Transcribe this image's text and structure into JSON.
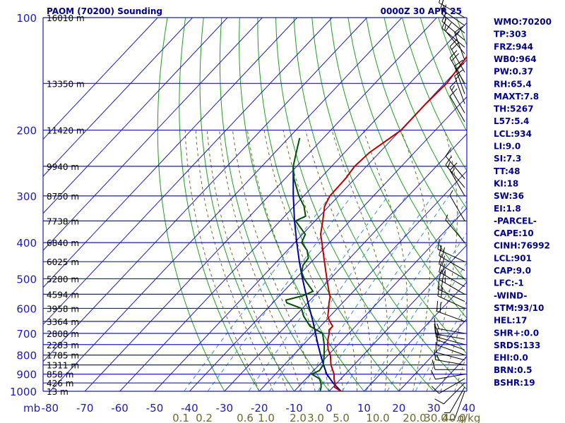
{
  "header": {
    "station": "PAOM (70200) Sounding",
    "time": "0000Z 30 APR 25"
  },
  "axis": {
    "corner_label": "mb",
    "pressure_ticks": [
      100,
      200,
      300,
      400,
      500,
      600,
      700,
      800,
      900,
      1000
    ],
    "temperature_ticks": [
      "-80",
      "-70",
      "-60",
      "-50",
      "-40",
      "-30",
      "-20",
      "-10",
      "0",
      "10",
      "20",
      "30",
      "40"
    ],
    "mixing_ratio_ticks": [
      "0.1",
      "0.2",
      "0.6",
      "1.0",
      "2.0",
      "3.0",
      "5.0",
      "10.0",
      "20.0",
      "30.0",
      "40.0"
    ],
    "mixing_ratio_unit": "g/kg",
    "height_ticks": [
      {
        "p": 100,
        "label": "16010 m"
      },
      {
        "p": 150,
        "label": "13350 m"
      },
      {
        "p": 200,
        "label": "11420 m"
      },
      {
        "p": 250,
        "label": "9940 m"
      },
      {
        "p": 300,
        "label": "8750 m"
      },
      {
        "p": 350,
        "label": "7738 m"
      },
      {
        "p": 400,
        "label": "6840 m"
      },
      {
        "p": 450,
        "label": "6025 m"
      },
      {
        "p": 500,
        "label": "5280 m"
      },
      {
        "p": 550,
        "label": "4594 m"
      },
      {
        "p": 600,
        "label": "3958 m"
      },
      {
        "p": 650,
        "label": "3364 m"
      },
      {
        "p": 700,
        "label": "2808 m"
      },
      {
        "p": 750,
        "label": "2283 m"
      },
      {
        "p": 800,
        "label": "1785 m"
      },
      {
        "p": 850,
        "label": "1311 m"
      },
      {
        "p": 900,
        "label": "858 m"
      },
      {
        "p": 950,
        "label": "426 m"
      },
      {
        "p": 1000,
        "label": "13 m"
      }
    ]
  },
  "indices": [
    "WMO:70200",
    "TP:303",
    "FRZ:944",
    "WB0:964",
    "PW:0.37",
    "RH:65.4",
    "MAXT:7.8",
    "TH:5267",
    "L57:5.4",
    "LCL:934",
    "LI:9.0",
    "SI:7.3",
    "TT:48",
    "KI:18",
    "SW:36",
    "EI:1.8",
    "-PARCEL-",
    "CAPE:10",
    "CINH:76992",
    "LCL:901",
    "CAP:9.0",
    "LFC:-1",
    "-WIND-",
    "STM:93/10",
    "HEL:17",
    "SHR+:0.0",
    "SRDS:133",
    "EHI:0.0",
    "BRN:0.5",
    "BSHR:19"
  ],
  "colors": {
    "isobar": "#1c1cb8",
    "isotherm": "#1c1cb8",
    "dry_adiabat": "#1aa01a",
    "moist_adiabat": "#6b6b2a",
    "mixing_ratio": "#3a8fd0",
    "temperature": "#c00000",
    "dewpoint": "#005000",
    "parcel": "#0000a0",
    "wind_barb": "#000000"
  },
  "chart_data": {
    "type": "skew-t",
    "y_scale": "log-pressure",
    "ylim": [
      1000,
      100
    ],
    "xlim": [
      -80,
      40
    ],
    "temperature_profile": [
      {
        "p": 1000,
        "t": 3.4
      },
      {
        "p": 975,
        "t": 0.4
      },
      {
        "p": 950,
        "t": -0.6
      },
      {
        "p": 925,
        "t": -2.0
      },
      {
        "p": 900,
        "t": -3.2
      },
      {
        "p": 850,
        "t": -6.6
      },
      {
        "p": 800,
        "t": -9.4
      },
      {
        "p": 775,
        "t": -11.4
      },
      {
        "p": 750,
        "t": -13.0
      },
      {
        "p": 725,
        "t": -14.4
      },
      {
        "p": 700,
        "t": -15.6
      },
      {
        "p": 685,
        "t": -16.6
      },
      {
        "p": 670,
        "t": -16.5
      },
      {
        "p": 650,
        "t": -18.7
      },
      {
        "p": 630,
        "t": -20.6
      },
      {
        "p": 600,
        "t": -22.5
      },
      {
        "p": 580,
        "t": -23.9
      },
      {
        "p": 560,
        "t": -25.1
      },
      {
        "p": 550,
        "t": -26.1
      },
      {
        "p": 500,
        "t": -31.0
      },
      {
        "p": 450,
        "t": -36.3
      },
      {
        "p": 400,
        "t": -42.2
      },
      {
        "p": 380,
        "t": -44.8
      },
      {
        "p": 350,
        "t": -47.8
      },
      {
        "p": 320,
        "t": -51.2
      },
      {
        "p": 300,
        "t": -52.5
      },
      {
        "p": 270,
        "t": -52.7
      },
      {
        "p": 250,
        "t": -53.4
      },
      {
        "p": 230,
        "t": -52.9
      },
      {
        "p": 200,
        "t": -49.8
      },
      {
        "p": 170,
        "t": -49.9
      },
      {
        "p": 150,
        "t": -49.4
      },
      {
        "p": 125,
        "t": -51.0
      },
      {
        "p": 100,
        "t": -52.6
      }
    ],
    "dewpoint_profile": [
      {
        "p": 1000,
        "t": -2.6
      },
      {
        "p": 975,
        "t": -3.4
      },
      {
        "p": 950,
        "t": -4.6
      },
      {
        "p": 925,
        "t": -6.2
      },
      {
        "p": 900,
        "t": -9.6
      },
      {
        "p": 880,
        "t": -8.4
      },
      {
        "p": 850,
        "t": -8.8
      },
      {
        "p": 800,
        "t": -11.2
      },
      {
        "p": 750,
        "t": -14.0
      },
      {
        "p": 700,
        "t": -17.5
      },
      {
        "p": 670,
        "t": -23.0
      },
      {
        "p": 630,
        "t": -27.5
      },
      {
        "p": 600,
        "t": -30.3
      },
      {
        "p": 580,
        "t": -36.0
      },
      {
        "p": 570,
        "t": -37.0
      },
      {
        "p": 555,
        "t": -33.3
      },
      {
        "p": 540,
        "t": -31.6
      },
      {
        "p": 500,
        "t": -37.5
      },
      {
        "p": 480,
        "t": -40.0
      },
      {
        "p": 460,
        "t": -41.5
      },
      {
        "p": 440,
        "t": -41.9
      },
      {
        "p": 420,
        "t": -44.3
      },
      {
        "p": 400,
        "t": -48.0
      },
      {
        "p": 380,
        "t": -49.2
      },
      {
        "p": 350,
        "t": -55.6
      },
      {
        "p": 340,
        "t": -54.0
      },
      {
        "p": 320,
        "t": -57.1
      },
      {
        "p": 300,
        "t": -61.4
      },
      {
        "p": 270,
        "t": -67.4
      },
      {
        "p": 250,
        "t": -71.0
      },
      {
        "p": 230,
        "t": -73.8
      },
      {
        "p": 210,
        "t": -76.8
      }
    ],
    "parcel_profile": [
      {
        "p": 1000,
        "t": 3.4
      },
      {
        "p": 950,
        "t": -1.1
      },
      {
        "p": 900,
        "t": -5.3
      },
      {
        "p": 850,
        "t": -8.7
      },
      {
        "p": 800,
        "t": -12.2
      },
      {
        "p": 750,
        "t": -15.8
      },
      {
        "p": 700,
        "t": -19.5
      },
      {
        "p": 650,
        "t": -23.5
      },
      {
        "p": 600,
        "t": -28.0
      },
      {
        "p": 550,
        "t": -32.8
      },
      {
        "p": 500,
        "t": -38.0
      },
      {
        "p": 450,
        "t": -43.5
      },
      {
        "p": 400,
        "t": -49.4
      },
      {
        "p": 350,
        "t": -55.9
      },
      {
        "p": 300,
        "t": -63.0
      },
      {
        "p": 250,
        "t": -71.0
      }
    ],
    "wind_barbs": [
      {
        "p": 1000,
        "dir": 200,
        "spd": 5
      },
      {
        "p": 975,
        "dir": 210,
        "spd": 5
      },
      {
        "p": 950,
        "dir": 225,
        "spd": 10
      },
      {
        "p": 925,
        "dir": 240,
        "spd": 10
      },
      {
        "p": 900,
        "dir": 260,
        "spd": 10
      },
      {
        "p": 875,
        "dir": 270,
        "spd": 10
      },
      {
        "p": 850,
        "dir": 280,
        "spd": 15
      },
      {
        "p": 825,
        "dir": 285,
        "spd": 10
      },
      {
        "p": 800,
        "dir": 290,
        "spd": 10
      },
      {
        "p": 775,
        "dir": 290,
        "spd": 10
      },
      {
        "p": 750,
        "dir": 285,
        "spd": 15
      },
      {
        "p": 725,
        "dir": 280,
        "spd": 15
      },
      {
        "p": 700,
        "dir": 280,
        "spd": 15
      },
      {
        "p": 650,
        "dir": 290,
        "spd": 20
      },
      {
        "p": 600,
        "dir": 295,
        "spd": 20
      },
      {
        "p": 575,
        "dir": 295,
        "spd": 20
      },
      {
        "p": 550,
        "dir": 300,
        "spd": 25
      },
      {
        "p": 525,
        "dir": 300,
        "spd": 25
      },
      {
        "p": 500,
        "dir": 300,
        "spd": 20
      },
      {
        "p": 475,
        "dir": 300,
        "spd": 20
      },
      {
        "p": 450,
        "dir": 295,
        "spd": 15
      },
      {
        "p": 400,
        "dir": 320,
        "spd": 5
      },
      {
        "p": 350,
        "dir": 330,
        "spd": 5
      },
      {
        "p": 300,
        "dir": 330,
        "spd": 15
      },
      {
        "p": 285,
        "dir": 320,
        "spd": 15
      },
      {
        "p": 270,
        "dir": 320,
        "spd": 10
      },
      {
        "p": 190,
        "dir": 330,
        "spd": 10
      },
      {
        "p": 180,
        "dir": 330,
        "spd": 15
      },
      {
        "p": 170,
        "dir": 340,
        "spd": 15
      },
      {
        "p": 160,
        "dir": 340,
        "spd": 20
      },
      {
        "p": 150,
        "dir": 330,
        "spd": 20
      },
      {
        "p": 140,
        "dir": 330,
        "spd": 20
      },
      {
        "p": 130,
        "dir": 340,
        "spd": 15
      },
      {
        "p": 125,
        "dir": 320,
        "spd": 10
      },
      {
        "p": 120,
        "dir": 310,
        "spd": 15
      },
      {
        "p": 115,
        "dir": 310,
        "spd": 15
      },
      {
        "p": 110,
        "dir": 310,
        "spd": 15
      },
      {
        "p": 105,
        "dir": 305,
        "spd": 15
      },
      {
        "p": 100,
        "dir": 300,
        "spd": 20
      }
    ]
  }
}
